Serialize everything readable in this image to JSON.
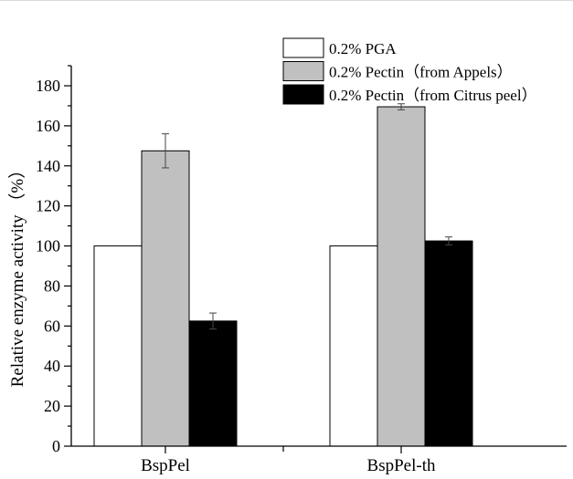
{
  "chart_data": {
    "type": "bar",
    "categories": [
      "BspPel",
      "BspPel-th"
    ],
    "ylabel": "Relative enzyme activity （%）",
    "xlabel": "",
    "ylim": [
      0,
      190
    ],
    "yticks": [
      0,
      20,
      40,
      60,
      80,
      100,
      120,
      140,
      160,
      180
    ],
    "grid": false,
    "legend_position": "top-right",
    "error_bars": true,
    "series": [
      {
        "name": "0.2% PGA",
        "color": "#ffffff",
        "values": [
          100,
          100
        ],
        "errors": [
          0,
          0
        ]
      },
      {
        "name": "0.2% Pectin（from Appels）",
        "color": "#c0c0c0",
        "values": [
          147.5,
          169.5
        ],
        "errors": [
          8.5,
          1.5
        ]
      },
      {
        "name": "0.2% Pectin（from Citrus peel）",
        "color": "#000000",
        "values": [
          62.5,
          102.5
        ],
        "errors": [
          4,
          2
        ]
      }
    ]
  }
}
